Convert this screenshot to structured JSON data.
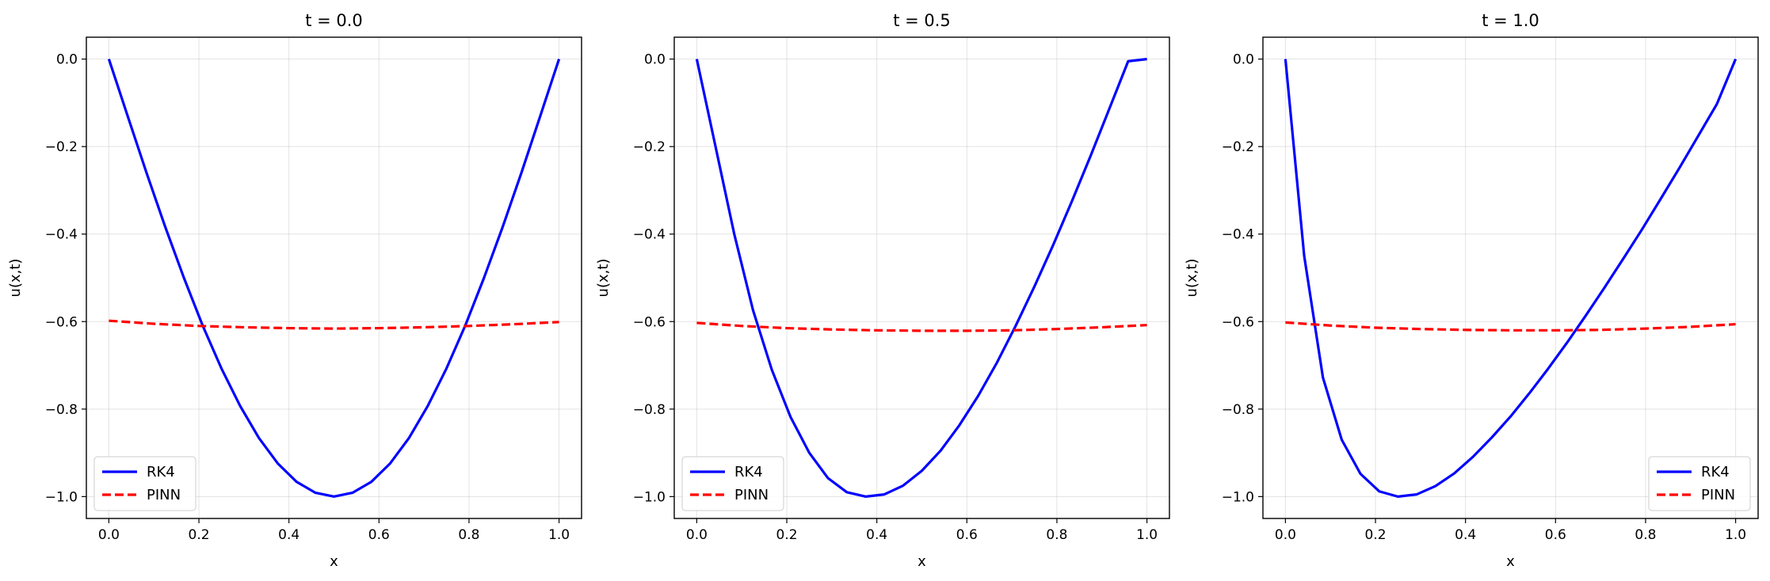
{
  "chart_data": [
    {
      "type": "line",
      "title": "t = 0.0",
      "xlabel": "x",
      "ylabel": "u(x,t)",
      "xlim": [
        -0.05,
        1.05
      ],
      "ylim": [
        -1.05,
        0.05
      ],
      "xticks": [
        "0.0",
        "0.2",
        "0.4",
        "0.6",
        "0.8",
        "1.0"
      ],
      "yticks": [
        "0.0",
        "−0.2",
        "−0.4",
        "−0.6",
        "−0.8",
        "−1.0"
      ],
      "grid": true,
      "legend_position": "lower-left",
      "series": [
        {
          "name": "RK4",
          "color": "#0000ff",
          "style": "solid",
          "x": [
            0.0,
            0.0417,
            0.0833,
            0.125,
            0.1667,
            0.2083,
            0.25,
            0.2917,
            0.3333,
            0.375,
            0.4167,
            0.4583,
            0.5,
            0.5417,
            0.5833,
            0.625,
            0.6667,
            0.7083,
            0.75,
            0.7917,
            0.8333,
            0.875,
            0.9167,
            0.9583,
            1.0
          ],
          "y": [
            0.0,
            -0.13,
            -0.259,
            -0.383,
            -0.5,
            -0.609,
            -0.707,
            -0.793,
            -0.866,
            -0.924,
            -0.966,
            -0.991,
            -1.0,
            -0.991,
            -0.966,
            -0.924,
            -0.866,
            -0.793,
            -0.707,
            -0.609,
            -0.5,
            -0.383,
            -0.259,
            -0.13,
            0.0
          ]
        },
        {
          "name": "PINN",
          "color": "#ff0000",
          "style": "dashed",
          "x": [
            0.0,
            0.1,
            0.2,
            0.3,
            0.4,
            0.5,
            0.6,
            0.7,
            0.8,
            0.9,
            1.0
          ],
          "y": [
            -0.598,
            -0.605,
            -0.61,
            -0.613,
            -0.615,
            -0.616,
            -0.615,
            -0.613,
            -0.61,
            -0.606,
            -0.601
          ]
        }
      ]
    },
    {
      "type": "line",
      "title": "t = 0.5",
      "xlabel": "x",
      "ylabel": "u(x,t)",
      "xlim": [
        -0.05,
        1.05
      ],
      "ylim": [
        -1.05,
        0.05
      ],
      "xticks": [
        "0.0",
        "0.2",
        "0.4",
        "0.6",
        "0.8",
        "1.0"
      ],
      "yticks": [
        "0.0",
        "−0.2",
        "−0.4",
        "−0.6",
        "−0.8",
        "−1.0"
      ],
      "grid": true,
      "legend_position": "lower-left",
      "series": [
        {
          "name": "RK4",
          "color": "#0000ff",
          "style": "solid",
          "x": [
            0.0,
            0.0417,
            0.0833,
            0.125,
            0.1667,
            0.2083,
            0.25,
            0.2917,
            0.3333,
            0.375,
            0.4167,
            0.4583,
            0.5,
            0.5417,
            0.5833,
            0.625,
            0.6667,
            0.7083,
            0.75,
            0.7917,
            0.8333,
            0.875,
            0.9167,
            0.9583,
            1.0
          ],
          "y": [
            0.0,
            -0.2,
            -0.4,
            -0.574,
            -0.71,
            -0.818,
            -0.9,
            -0.958,
            -0.99,
            -1.0,
            -0.995,
            -0.975,
            -0.941,
            -0.895,
            -0.837,
            -0.77,
            -0.694,
            -0.61,
            -0.52,
            -0.425,
            -0.325,
            -0.221,
            -0.113,
            -0.005,
            0.0
          ]
        },
        {
          "name": "PINN",
          "color": "#ff0000",
          "style": "dashed",
          "x": [
            0.0,
            0.1,
            0.2,
            0.3,
            0.4,
            0.5,
            0.6,
            0.7,
            0.8,
            0.9,
            1.0
          ],
          "y": [
            -0.603,
            -0.61,
            -0.615,
            -0.618,
            -0.62,
            -0.621,
            -0.621,
            -0.62,
            -0.617,
            -0.613,
            -0.608
          ]
        }
      ]
    },
    {
      "type": "line",
      "title": "t = 1.0",
      "xlabel": "x",
      "ylabel": "u(x,t)",
      "xlim": [
        -0.05,
        1.05
      ],
      "ylim": [
        -1.05,
        0.05
      ],
      "xticks": [
        "0.0",
        "0.2",
        "0.4",
        "0.6",
        "0.8",
        "1.0"
      ],
      "yticks": [
        "0.0",
        "−0.2",
        "−0.4",
        "−0.6",
        "−0.8",
        "−1.0"
      ],
      "grid": true,
      "legend_position": "lower-right",
      "series": [
        {
          "name": "RK4",
          "color": "#0000ff",
          "style": "solid",
          "x": [
            0.0,
            0.0417,
            0.0833,
            0.125,
            0.1667,
            0.2083,
            0.25,
            0.2917,
            0.3333,
            0.375,
            0.4167,
            0.4583,
            0.5,
            0.5417,
            0.5833,
            0.625,
            0.6667,
            0.7083,
            0.75,
            0.7917,
            0.8333,
            0.875,
            0.9167,
            0.9583,
            1.0
          ],
          "y": [
            0.0,
            -0.45,
            -0.728,
            -0.87,
            -0.948,
            -0.988,
            -1.0,
            -0.995,
            -0.976,
            -0.947,
            -0.909,
            -0.865,
            -0.817,
            -0.764,
            -0.708,
            -0.649,
            -0.587,
            -0.523,
            -0.457,
            -0.39,
            -0.32,
            -0.249,
            -0.176,
            -0.103,
            0.0
          ]
        },
        {
          "name": "PINN",
          "color": "#ff0000",
          "style": "dashed",
          "x": [
            0.0,
            0.1,
            0.2,
            0.3,
            0.4,
            0.5,
            0.6,
            0.7,
            0.8,
            0.9,
            1.0
          ],
          "y": [
            -0.602,
            -0.609,
            -0.614,
            -0.617,
            -0.619,
            -0.62,
            -0.62,
            -0.619,
            -0.616,
            -0.612,
            -0.606
          ]
        }
      ]
    }
  ]
}
